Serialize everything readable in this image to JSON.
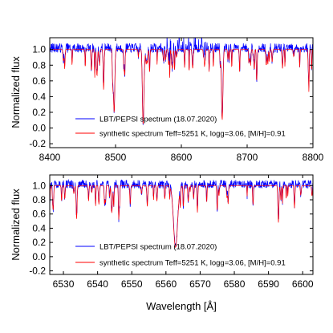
{
  "chart_data": [
    {
      "type": "line",
      "panel": "top",
      "xlim": [
        8400,
        8800
      ],
      "ylim": [
        -0.25,
        1.15
      ],
      "xticks": [
        "8400",
        "8500",
        "8600",
        "8700",
        "8800"
      ],
      "yticks": [
        "-0.2",
        "0.0",
        "0.2",
        "0.4",
        "0.6",
        "0.8",
        "1.0"
      ],
      "xlabel": "",
      "ylabel": "Normalized flux",
      "legend_position": "lower-center",
      "series": [
        {
          "name": "LBT/PEPSI spectrum (18.07.2020)",
          "color": "#0000ff"
        },
        {
          "name": "synthetic spectrum Teff=5251 K, logg=3.06, [M/H]=0.91",
          "color": "#ff0000"
        }
      ],
      "lines": [
        {
          "center": 8468.4,
          "depth": 0.36,
          "width": 0.45
        },
        {
          "center": 8498.0,
          "depth": 0.78,
          "width": 0.9
        },
        {
          "center": 8514.1,
          "depth": 0.3,
          "width": 0.45
        },
        {
          "center": 8542.1,
          "depth": 0.92,
          "width": 1.1
        },
        {
          "center": 8582.3,
          "depth": 0.28,
          "width": 0.4
        },
        {
          "center": 8611.8,
          "depth": 0.3,
          "width": 0.4
        },
        {
          "center": 8662.1,
          "depth": 0.9,
          "width": 1.1
        },
        {
          "center": 8688.6,
          "depth": 0.3,
          "width": 0.45
        },
        {
          "center": 8757.4,
          "depth": 0.22,
          "width": 0.4
        }
      ]
    },
    {
      "type": "line",
      "panel": "bottom",
      "xlim": [
        6526,
        6603
      ],
      "ylim": [
        -0.25,
        1.15
      ],
      "xticks": [
        "6530",
        "6540",
        "6550",
        "6560",
        "6570",
        "6580",
        "6590",
        "6600"
      ],
      "yticks": [
        "-0.2",
        "0.0",
        "0.2",
        "0.4",
        "0.6",
        "0.8",
        "1.0"
      ],
      "xlabel": "Wavelength [Å]",
      "ylabel": "Normalized flux",
      "legend_position": "lower-center",
      "series": [
        {
          "name": "LBT/PEPSI spectrum (18.07.2020)",
          "color": "#0000ff"
        },
        {
          "name": "synthetic spectrum Teff=5251 K, logg=3.06, [M/H]=0.91",
          "color": "#ff0000"
        }
      ],
      "lines": [
        {
          "center": 6533.9,
          "depth": 0.35,
          "width": 0.12
        },
        {
          "center": 6546.2,
          "depth": 0.48,
          "width": 0.12
        },
        {
          "center": 6562.8,
          "depth": 0.87,
          "width": 0.6
        },
        {
          "center": 6569.2,
          "depth": 0.38,
          "width": 0.12
        },
        {
          "center": 6575.0,
          "depth": 0.35,
          "width": 0.12
        },
        {
          "center": 6592.9,
          "depth": 0.52,
          "width": 0.15
        },
        {
          "center": 6597.6,
          "depth": 0.32,
          "width": 0.12
        }
      ]
    }
  ]
}
